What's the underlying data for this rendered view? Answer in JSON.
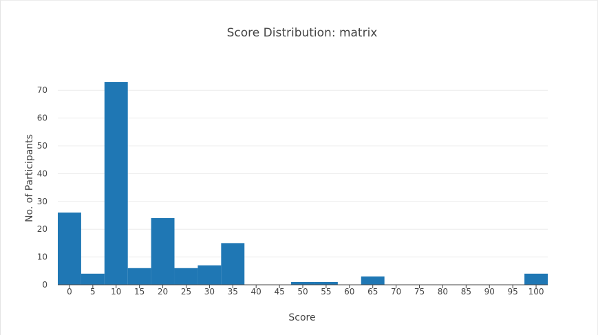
{
  "chart_data": {
    "type": "bar",
    "title": "Score Distribution: matrix",
    "xlabel": "Score",
    "ylabel": "No. of Participants",
    "x_ticks": [
      0,
      5,
      10,
      15,
      20,
      25,
      30,
      35,
      40,
      45,
      50,
      55,
      60,
      65,
      70,
      75,
      80,
      85,
      90,
      95,
      100
    ],
    "y_ticks": [
      0,
      10,
      20,
      30,
      40,
      50,
      60,
      70
    ],
    "xlim": [
      -2.5,
      102.5
    ],
    "ylim": [
      0,
      75
    ],
    "grid": true,
    "legend": "none",
    "color": "#1f77b4",
    "bins": [
      {
        "start": -2.5,
        "end": 2.5,
        "value": 26
      },
      {
        "start": 2.5,
        "end": 7.5,
        "value": 4
      },
      {
        "start": 7.5,
        "end": 12.5,
        "value": 73
      },
      {
        "start": 12.5,
        "end": 17.5,
        "value": 6
      },
      {
        "start": 17.5,
        "end": 22.5,
        "value": 24
      },
      {
        "start": 22.5,
        "end": 27.5,
        "value": 6
      },
      {
        "start": 27.5,
        "end": 32.5,
        "value": 7
      },
      {
        "start": 32.5,
        "end": 37.5,
        "value": 15
      },
      {
        "start": 37.5,
        "end": 42.5,
        "value": 0
      },
      {
        "start": 42.5,
        "end": 47.5,
        "value": 0
      },
      {
        "start": 47.5,
        "end": 52.5,
        "value": 1
      },
      {
        "start": 52.5,
        "end": 57.5,
        "value": 1
      },
      {
        "start": 57.5,
        "end": 62.5,
        "value": 0
      },
      {
        "start": 62.5,
        "end": 67.5,
        "value": 3
      },
      {
        "start": 67.5,
        "end": 72.5,
        "value": 0
      },
      {
        "start": 72.5,
        "end": 77.5,
        "value": 0
      },
      {
        "start": 77.5,
        "end": 82.5,
        "value": 0
      },
      {
        "start": 82.5,
        "end": 87.5,
        "value": 0
      },
      {
        "start": 87.5,
        "end": 92.5,
        "value": 0
      },
      {
        "start": 92.5,
        "end": 97.5,
        "value": 0
      },
      {
        "start": 97.5,
        "end": 102.5,
        "value": 4
      }
    ]
  }
}
